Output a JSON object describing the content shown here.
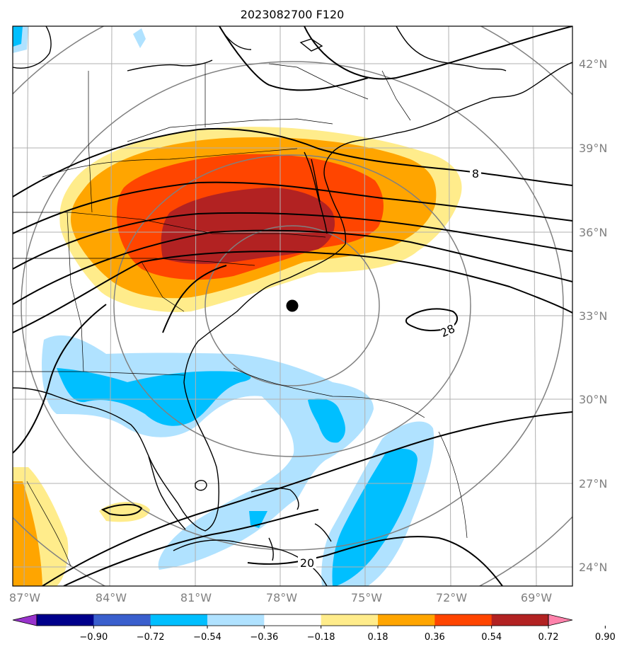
{
  "title": "2023082700 F120",
  "map": {
    "lat_labels": [
      "42°N",
      "39°N",
      "36°N",
      "33°N",
      "30°N",
      "27°N",
      "24°N"
    ],
    "lon_labels": [
      "87°W",
      "84°W",
      "81°W",
      "78°W",
      "75°W",
      "72°W",
      "69°W"
    ],
    "contour_labels": [
      "8",
      "28",
      "20"
    ],
    "storm_center": {
      "lat": 33.3,
      "lon": -77.8
    }
  },
  "colorbar": {
    "ticks": [
      "−0.90",
      "−0.72",
      "−0.54",
      "−0.36",
      "−0.18",
      "0.18",
      "0.36",
      "0.54",
      "0.72",
      "0.90"
    ],
    "colors": [
      "#9933cc",
      "#00008b",
      "#3a5fcd",
      "#00bfff",
      "#b0e2ff",
      "#ffffff",
      "#ffec8b",
      "#ffa500",
      "#ff4500",
      "#b22222",
      "#ff82ab"
    ]
  }
}
